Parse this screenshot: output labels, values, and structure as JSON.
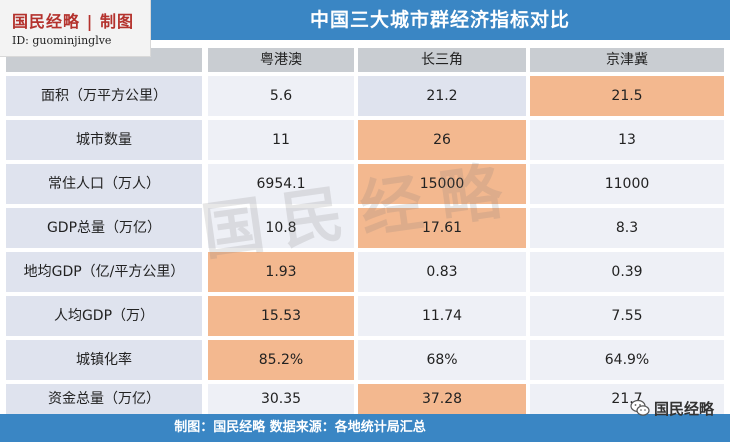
{
  "title": "中国三大城市群经济指标对比",
  "logo": {
    "name": "国民经略 | 制图",
    "id": "ID:  guominjinglve"
  },
  "columns": [
    "粤港澳",
    "长三角",
    "京津冀"
  ],
  "rows": [
    {
      "label": "面积（万平方公里）",
      "values": [
        "5.6",
        "21.2",
        "21.5"
      ]
    },
    {
      "label": "城市数量",
      "values": [
        "11",
        "26",
        "13"
      ]
    },
    {
      "label": "常住人口（万人）",
      "values": [
        "6954.1",
        "15000",
        "11000"
      ]
    },
    {
      "label": "GDP总量（万亿）",
      "values": [
        "10.8",
        "17.61",
        "8.3"
      ]
    },
    {
      "label": "地均GDP（亿/平方公里）",
      "values": [
        "1.93",
        "0.83",
        "0.39"
      ]
    },
    {
      "label": "人均GDP（万）",
      "values": [
        "15.53",
        "11.74",
        "7.55"
      ]
    },
    {
      "label": "城镇化率",
      "values": [
        "85.2%",
        "68%",
        "64.9%"
      ]
    },
    {
      "label": "资金总量（万亿）",
      "values": [
        "30.35",
        "37.28",
        "21.7"
      ]
    }
  ],
  "watermark": "国民经略",
  "footer": "制图：国民经略  数据来源：各地统计局汇总",
  "wechat": {
    "label": "国民经略"
  },
  "colors": {
    "header_bar": "#3a86c4",
    "highlight": "#f3b88f",
    "row_bg": "#dfe3ee",
    "column_header": "#c9cdd2",
    "brand_red": "#b4322d"
  }
}
